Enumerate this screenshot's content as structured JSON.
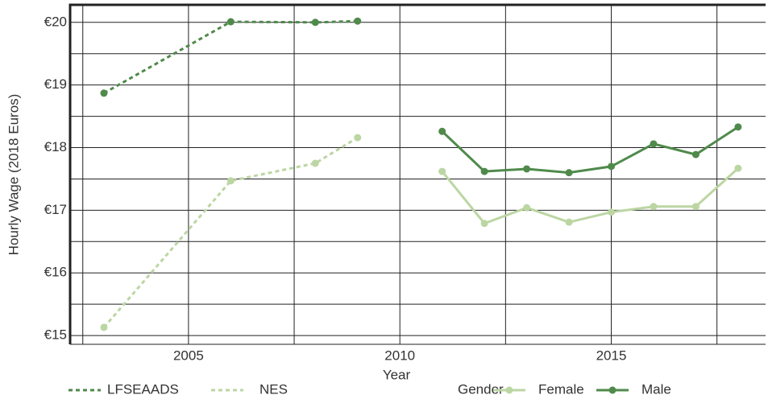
{
  "chart_data": {
    "type": "line",
    "xlabel": "Year",
    "ylabel": "Hourly Wage (2018 Euros)",
    "legend_title": "Gender",
    "legend": "bottom",
    "grid": true,
    "xlim": [
      2002.2,
      2018.65
    ],
    "ylim": [
      14.86,
      20.28
    ],
    "xticks": [
      2005,
      2010,
      2015
    ],
    "xminor": [
      2002.5,
      2007.5,
      2012.5,
      2017.5
    ],
    "yticks": [
      {
        "value": 15,
        "label": "€15"
      },
      {
        "value": 16,
        "label": "€16"
      },
      {
        "value": 17,
        "label": "€17"
      },
      {
        "value": 18,
        "label": "€18"
      },
      {
        "value": 19,
        "label": "€19"
      },
      {
        "value": 20,
        "label": "€20"
      }
    ],
    "yminor": [
      15.5,
      16.5,
      17.5,
      18.5,
      19.5
    ],
    "series": [
      {
        "name": "LFSEAADS",
        "color": "#4f8a4b",
        "dashed": true,
        "x": [
          2003,
          2006,
          2008,
          2009
        ],
        "values": [
          18.87,
          20.01,
          20.0,
          20.02
        ]
      },
      {
        "name": "NES",
        "color": "#bcd6a3",
        "dashed": true,
        "x": [
          2003,
          2006,
          2008,
          2009
        ],
        "values": [
          15.13,
          17.47,
          17.75,
          18.16
        ]
      },
      {
        "name": "Female",
        "color": "#bcd6a3",
        "dashed": false,
        "x": [
          2011,
          2012,
          2013,
          2014,
          2015,
          2016,
          2017,
          2018
        ],
        "values": [
          17.62,
          16.79,
          17.04,
          16.81,
          16.97,
          17.06,
          17.06,
          17.67
        ]
      },
      {
        "name": "Male",
        "color": "#4f8a4b",
        "dashed": false,
        "x": [
          2011,
          2012,
          2013,
          2014,
          2015,
          2016,
          2017,
          2018
        ],
        "values": [
          18.26,
          17.62,
          17.66,
          17.6,
          17.7,
          18.06,
          17.89,
          18.33
        ]
      }
    ]
  }
}
